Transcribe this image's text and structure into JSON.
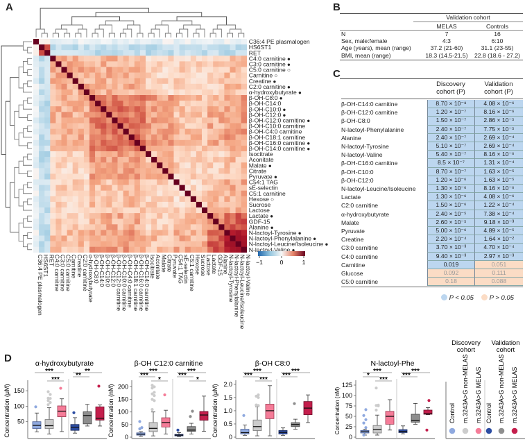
{
  "panels": {
    "a": "A",
    "b": "B",
    "c": "C",
    "d": "D"
  },
  "heatmap": {
    "labels": [
      {
        "label": "C36:4 PE plasmalogen",
        "marker": ""
      },
      {
        "label": "HS6ST1",
        "marker": ""
      },
      {
        "label": "RET",
        "marker": ""
      },
      {
        "label": "C4:0 carnitine",
        "marker": "filled"
      },
      {
        "label": "C3:0 carnitine",
        "marker": "filled"
      },
      {
        "label": "C5:0 carnitine",
        "marker": "open"
      },
      {
        "label": "Carnitine",
        "marker": "open"
      },
      {
        "label": "Creatine",
        "marker": "filled"
      },
      {
        "label": "C2:0 carnitine",
        "marker": "filled"
      },
      {
        "label": "α-hydroxybutyrate",
        "marker": "filled"
      },
      {
        "label": "β-OH-C8:0",
        "marker": "filled"
      },
      {
        "label": "β-OH-C14:0",
        "marker": ""
      },
      {
        "label": "β-OH-C10:0",
        "marker": "filled"
      },
      {
        "label": "β-OH-C12:0",
        "marker": "filled"
      },
      {
        "label": "β-OH-C12:0 carnitine",
        "marker": "filled"
      },
      {
        "label": "β-OH-C10:0 carnitine",
        "marker": ""
      },
      {
        "label": "β-OH-C4:0 carnitine",
        "marker": ""
      },
      {
        "label": "β-OH-C18:1 carnitine",
        "marker": ""
      },
      {
        "label": "β-OH-C16:0 carnitine",
        "marker": "filled"
      },
      {
        "label": "β-OH-C14:0 carnitine",
        "marker": "filled"
      },
      {
        "label": "Isocitrate",
        "marker": ""
      },
      {
        "label": "Aconitate",
        "marker": ""
      },
      {
        "label": "Malate",
        "marker": "filled"
      },
      {
        "label": "Citrate",
        "marker": ""
      },
      {
        "label": "Pyruvate",
        "marker": "filled"
      },
      {
        "label": "C54:1 TAG",
        "marker": ""
      },
      {
        "label": "sE-selectin",
        "marker": ""
      },
      {
        "label": "C5:1 carnitine",
        "marker": ""
      },
      {
        "label": "Hexose",
        "marker": "open"
      },
      {
        "label": "Sucrose",
        "marker": ""
      },
      {
        "label": "Lactose",
        "marker": ""
      },
      {
        "label": "Lactate",
        "marker": "filled"
      },
      {
        "label": "GDF-15",
        "marker": ""
      },
      {
        "label": "Alanine",
        "marker": "filled"
      },
      {
        "label": "N-lactoyl-Tyrosine",
        "marker": "filled"
      },
      {
        "label": "N-lactoyl-Phenylalanine",
        "marker": "filled"
      },
      {
        "label": "N-lactoyl-Leucine/Isoleucine",
        "marker": "filled"
      },
      {
        "label": "N-lactoyl-Valine",
        "marker": "filled"
      }
    ],
    "groups": [
      "pe",
      "neg",
      "neg",
      "carn",
      "carn",
      "carn",
      "carn",
      "carn",
      "carn",
      "carn",
      "boh",
      "boh",
      "boh",
      "boh",
      "boh",
      "boh",
      "boh",
      "boh",
      "boh",
      "boh",
      "tca",
      "tca",
      "tca",
      "tca",
      "tca",
      "misc",
      "misc",
      "misc",
      "misc",
      "misc",
      "misc",
      "lac",
      "lac",
      "lac",
      "nlac",
      "nlac",
      "nlac",
      "nlac"
    ],
    "colorbar": {
      "min": "−1",
      "mid": "0",
      "max": "1"
    },
    "colors": {
      "neg": "#2166ac",
      "zero": "#f7f7f7",
      "pos": "#67001f"
    }
  },
  "table_b": {
    "header_group": "Validation cohort",
    "columns": [
      "MELAS",
      "Controls"
    ],
    "rows": [
      {
        "label": "N",
        "melas": "7",
        "controls": "16"
      },
      {
        "label": "Sex, male:female",
        "melas": "4:3",
        "controls": "6:10"
      },
      {
        "label": "Age (years), mean (range)",
        "melas": "37.2 (21-60)",
        "controls": "31.1 (23-55)"
      },
      {
        "label": "BMI, mean (range)",
        "melas": "18.3 (14.5-21.5)",
        "controls": "22.8 (18.6 - 27.2)"
      }
    ]
  },
  "table_c": {
    "col1": [
      "Discovery",
      "cohort (P)"
    ],
    "col2": [
      "Validation",
      "cohort (P)"
    ],
    "rows": [
      {
        "label": "β-OH-C14:0 carnitine",
        "d": "8.70 × 10⁻⁸",
        "v": "4.08 × 10⁻⁶",
        "ds": true,
        "vs": true
      },
      {
        "label": "β-OH-C12:0 carnitine",
        "d": "1.20 × 10⁻⁷",
        "v": "8.16 × 10⁻⁶",
        "ds": true,
        "vs": true
      },
      {
        "label": "β-OH-C8:0",
        "d": "1.50 × 10⁻⁷",
        "v": "2.86 × 10⁻⁵",
        "ds": true,
        "vs": true
      },
      {
        "label": "N-lactoyl-Phenylalanine",
        "d": "2.40 × 10⁻⁷",
        "v": "7.75 × 10⁻⁵",
        "ds": true,
        "vs": true
      },
      {
        "label": "Alanine",
        "d": "2.40 × 10⁻⁷",
        "v": "2.69 × 10⁻⁴",
        "ds": true,
        "vs": true
      },
      {
        "label": "N-lactoyl-Tyrosine",
        "d": "5.10 × 10⁻⁷",
        "v": "2.69 × 10⁻⁴",
        "ds": true,
        "vs": true
      },
      {
        "label": "N-lactoyl-Valine",
        "d": "5.40 × 10⁻⁷",
        "v": "8.16 × 10⁻⁶",
        "ds": true,
        "vs": true
      },
      {
        "label": "β-OH-C16:0 carnitine",
        "d": "8.5 × 10⁻⁷",
        "v": "1.31 × 10⁻⁴",
        "ds": true,
        "vs": true
      },
      {
        "label": "β-OH-C10:0",
        "d": "8.70 × 10⁻⁷",
        "v": "1.63 × 10⁻⁵",
        "ds": true,
        "vs": true
      },
      {
        "label": "β-OH-C12:0",
        "d": "1.20 × 10⁻⁶",
        "v": "1.63 × 10⁻⁵",
        "ds": true,
        "vs": true
      },
      {
        "label": "N-lactoyl-Leucine/Isoleucine",
        "d": "1.30 × 10⁻⁶",
        "v": "8.16 × 10⁻⁶",
        "ds": true,
        "vs": true
      },
      {
        "label": "Lactate",
        "d": "1.30 × 10⁻⁶",
        "v": "4.08 × 10⁻⁶",
        "ds": true,
        "vs": true
      },
      {
        "label": "C2:0 carnitine",
        "d": "1.50 × 10⁻⁶",
        "v": "1.22 × 10⁻⁴",
        "ds": true,
        "vs": true
      },
      {
        "label": "α-hydroxybutyrate",
        "d": "2.40 × 10⁻⁵",
        "v": "7.38 × 10⁻⁴",
        "ds": true,
        "vs": true
      },
      {
        "label": "Malate",
        "d": "2.60 × 10⁻⁵",
        "v": "9.18 × 10⁻³",
        "ds": true,
        "vs": true
      },
      {
        "label": "Pyruvate",
        "d": "5.00 × 10⁻⁶",
        "v": "4.89 × 10⁻⁵",
        "ds": true,
        "vs": true
      },
      {
        "label": "Creatine",
        "d": "2.20 × 10⁻⁴",
        "v": "1.64 × 10⁻²",
        "ds": true,
        "vs": true
      },
      {
        "label": "C3:0 carnitine",
        "d": "3.70 × 10⁻³",
        "v": "4.70 × 10⁻⁴",
        "ds": true,
        "vs": true
      },
      {
        "label": "C4:0 carnitine",
        "d": "9.40 × 10⁻³",
        "v": "2.97 × 10⁻³",
        "ds": true,
        "vs": true
      },
      {
        "label": "Carnitine",
        "d": "0.019",
        "v": "0.051",
        "ds": true,
        "vs": false
      },
      {
        "label": "Glucose",
        "d": "0.092",
        "v": "0.111",
        "ds": false,
        "vs": false
      },
      {
        "label": "C5:0 carnitine",
        "d": "0.18",
        "v": "0.088",
        "ds": false,
        "vs": false
      }
    ],
    "legend_sig": "P < 0.05",
    "legend_ns": "P > 0.05",
    "sig_color": "#bcd6ef",
    "ns_color": "#fbdcc5"
  },
  "legend_d": {
    "discovery": [
      "Discovery",
      "cohort"
    ],
    "validation": [
      "Validation",
      "cohort"
    ],
    "groups": [
      {
        "label": "Control",
        "color": "#8fa9df"
      },
      {
        "label": "m.3243A>G non-MELAS",
        "color": "#cccccc"
      },
      {
        "label": "m.3243A>G MELAS",
        "color": "#f57c98"
      },
      {
        "label": "Control",
        "color": "#2d4da3"
      },
      {
        "label": "m.3243A>G non-MELAS",
        "color": "#8e8e8e"
      },
      {
        "label": "m.3243A>G MELAS",
        "color": "#c41e4c"
      }
    ]
  },
  "chart_data": [
    {
      "type": "box",
      "title": "α-hydroxybutyrate",
      "ylabel": "Concentration (μM)",
      "ylim": [
        0,
        175
      ],
      "ticks": [
        50,
        100,
        150
      ],
      "boxes": [
        {
          "min": 17,
          "q1": 28,
          "med": 38,
          "q3": 50,
          "max": 78,
          "out": [
            98
          ]
        },
        {
          "min": 10,
          "q1": 28,
          "med": 37,
          "q3": 57,
          "max": 95,
          "out": [
            105,
            112,
            118,
            125,
            126,
            138,
            147
          ]
        },
        {
          "min": 18,
          "q1": 66,
          "med": 84,
          "q3": 101,
          "max": 124,
          "out": [
            158
          ]
        },
        {
          "min": 13,
          "q1": 22,
          "med": 32,
          "q3": 41,
          "max": 63,
          "out": [
            79
          ]
        },
        {
          "min": 36,
          "q1": 43,
          "med": 70,
          "q3": 82,
          "max": 106,
          "out": []
        },
        {
          "min": 36,
          "q1": 55,
          "med": 61,
          "q3": 98,
          "max": 104,
          "out": [
            165
          ]
        }
      ],
      "sig": [
        {
          "label": "***",
          "from": 0,
          "to": 2,
          "level": 2
        },
        {
          "label": "***",
          "from": 1,
          "to": 2,
          "level": 0
        },
        {
          "label": "**",
          "from": 3,
          "to": 5,
          "level": 2
        },
        {
          "label": "**",
          "from": 3,
          "to": 4,
          "level": 1
        }
      ]
    },
    {
      "type": "box",
      "title": "β-OH C12:0 carnitine",
      "ylabel": "Concentration (nM)",
      "ylim": [
        0,
        215
      ],
      "ticks": [
        0,
        50,
        100,
        150,
        200
      ],
      "boxes": [
        {
          "min": 3,
          "q1": 8,
          "med": 12,
          "q3": 17,
          "max": 22,
          "out": [
            33,
            38,
            62
          ]
        },
        {
          "min": 5,
          "q1": 22,
          "med": 35,
          "q3": 58,
          "max": 100,
          "out": [
            110,
            145,
            150,
            165,
            172,
            178,
            195,
            200,
            206
          ]
        },
        {
          "min": 12,
          "q1": 40,
          "med": 58,
          "q3": 77,
          "max": 107,
          "out": [
            168
          ]
        },
        {
          "min": 2,
          "q1": 5,
          "med": 8,
          "q3": 11,
          "max": 18,
          "out": [
            28
          ]
        },
        {
          "min": 12,
          "q1": 23,
          "med": 28,
          "q3": 42,
          "max": 55,
          "out": [
            82,
            103
          ]
        },
        {
          "min": 23,
          "q1": 67,
          "med": 88,
          "q3": 102,
          "max": 163,
          "out": []
        }
      ],
      "sig": [
        {
          "label": "***",
          "from": 0,
          "to": 2,
          "level": 2
        },
        {
          "label": "***",
          "from": 0,
          "to": 1,
          "level": 1
        },
        {
          "label": "*",
          "from": 1,
          "to": 2,
          "level": 0
        },
        {
          "label": "***",
          "from": 3,
          "to": 5,
          "level": 2
        },
        {
          "label": "***",
          "from": 3,
          "to": 4,
          "level": 1
        },
        {
          "label": "*",
          "from": 4,
          "to": 5,
          "level": 0
        }
      ]
    },
    {
      "type": "box",
      "title": "β-OH C8:0",
      "ylabel": "Concentration (μM)",
      "ylim": [
        0,
        2.05
      ],
      "ticks": [
        0,
        0.5,
        1.0,
        1.5,
        2.0
      ],
      "boxes": [
        {
          "min": 0.07,
          "q1": 0.12,
          "med": 0.17,
          "q3": 0.3,
          "max": 0.46,
          "out": [
            0.82
          ]
        },
        {
          "min": 0.05,
          "q1": 0.25,
          "med": 0.4,
          "q3": 0.65,
          "max": 1.15,
          "out": [
            1.2,
            1.2,
            1.22,
            1.5,
            1.55,
            1.6
          ]
        },
        {
          "min": 0.05,
          "q1": 0.7,
          "med": 1.0,
          "q3": 1.25,
          "max": 1.95,
          "out": []
        },
        {
          "min": 0.07,
          "q1": 0.12,
          "med": 0.18,
          "q3": 0.25,
          "max": 0.35,
          "out": []
        },
        {
          "min": 0.3,
          "q1": 0.4,
          "med": 0.48,
          "q3": 0.55,
          "max": 0.68,
          "out": [
            1.27
          ]
        },
        {
          "min": 0.55,
          "q1": 0.85,
          "med": 1.1,
          "q3": 1.35,
          "max": 1.6,
          "out": []
        }
      ],
      "sig": [
        {
          "label": "***",
          "from": 0,
          "to": 2,
          "level": 2
        },
        {
          "label": "***",
          "from": 0,
          "to": 1,
          "level": 1
        },
        {
          "label": "***",
          "from": 1,
          "to": 2,
          "level": 0
        },
        {
          "label": "***",
          "from": 3,
          "to": 5,
          "level": 2
        },
        {
          "label": "***",
          "from": 3,
          "to": 4,
          "level": 1
        }
      ]
    },
    {
      "type": "box",
      "title": "N-lactoyl-Phe",
      "ylabel": "Concentration (nM)",
      "ylim": [
        0,
        130
      ],
      "ticks": [
        0,
        25,
        50,
        75,
        100,
        125
      ],
      "boxes": [
        {
          "min": 5,
          "q1": 10,
          "med": 13,
          "q3": 16,
          "max": 19,
          "out": [
            5,
            23,
            34,
            42,
            52,
            66
          ]
        },
        {
          "min": 5,
          "q1": 10,
          "med": 18,
          "q3": 28,
          "max": 53,
          "out": [
            65,
            75,
            76,
            77,
            118
          ]
        },
        {
          "min": 17,
          "q1": 31,
          "med": 50,
          "q3": 62,
          "max": 90,
          "out": []
        },
        {
          "min": 8,
          "q1": 11,
          "med": 14,
          "q3": 18,
          "max": 27,
          "out": []
        },
        {
          "min": 31,
          "q1": 36,
          "med": 40,
          "q3": 55,
          "max": 81,
          "out": []
        },
        {
          "min": 54,
          "q1": 55,
          "med": 56,
          "q3": 65,
          "max": 71,
          "out": [
            17,
            88
          ]
        }
      ],
      "sig": [
        {
          "label": "***",
          "from": 0,
          "to": 2,
          "level": 2
        },
        {
          "label": "*",
          "from": 0,
          "to": 1,
          "level": 1
        },
        {
          "label": "***",
          "from": 1,
          "to": 2,
          "level": 0
        },
        {
          "label": "***",
          "from": 3,
          "to": 5,
          "level": 2
        },
        {
          "label": "***",
          "from": 3,
          "to": 4,
          "level": 1
        }
      ]
    }
  ]
}
